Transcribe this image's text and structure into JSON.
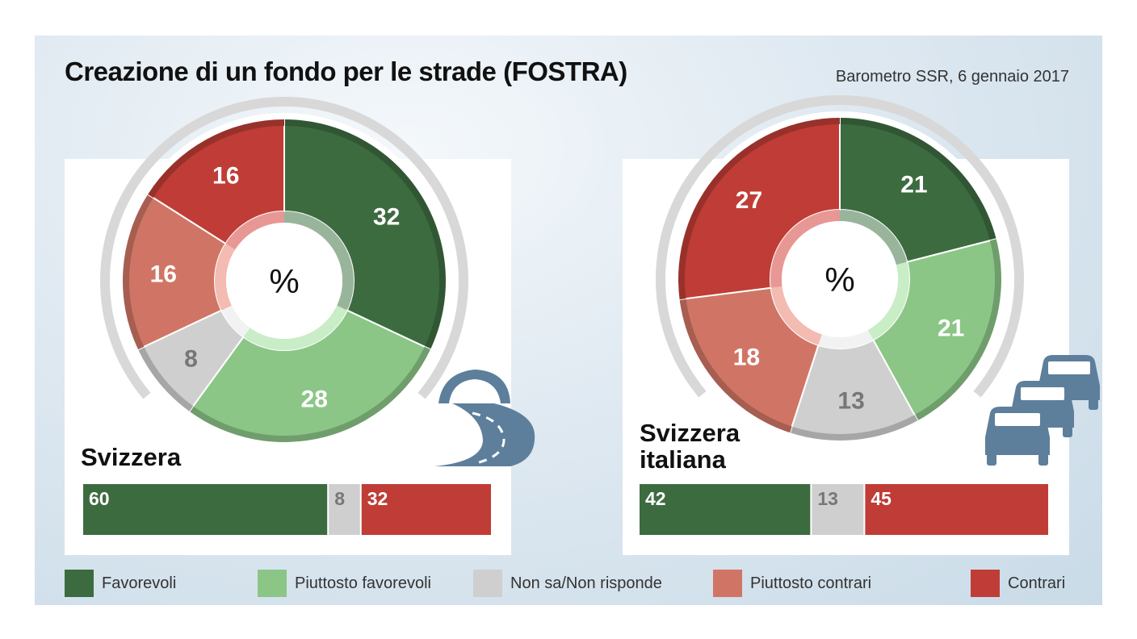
{
  "title": "Creazione di un fondo per le strade (FOSTRA)",
  "source": "Barometro SSR, 6 gennaio 2017",
  "colors": {
    "favorevoli": "#3d6b40",
    "piuttosto_favorevoli": "#8bc687",
    "non_sa": "#cfcfcf",
    "piuttosto_contrari": "#d07565",
    "contrari": "#bf3d36"
  },
  "icons": {
    "left": "road-tunnel-icon",
    "right": "traffic-cars-icon"
  },
  "legend": [
    {
      "label": "Favorevoli",
      "color": "#3d6b40"
    },
    {
      "label": "Piuttosto favorevoli",
      "color": "#8bc687"
    },
    {
      "label": "Non sa/Non risponde",
      "color": "#cfcfcf"
    },
    {
      "label": "Piuttosto contrari",
      "color": "#d07565"
    },
    {
      "label": "Contrari",
      "color": "#bf3d36"
    }
  ],
  "chart_data": [
    {
      "type": "pie",
      "region": "Svizzera",
      "center_label": "%",
      "categories": [
        "Favorevoli",
        "Piuttosto favorevoli",
        "Non sa/Non risponde",
        "Piuttosto contrari",
        "Contrari"
      ],
      "values": [
        32,
        28,
        8,
        16,
        16
      ],
      "summary_bar": {
        "type": "bar",
        "categories": [
          "Favorevoli",
          "Non sa/Non risponde",
          "Contrari"
        ],
        "values": [
          60,
          8,
          32
        ]
      }
    },
    {
      "type": "pie",
      "region": "Svizzera italiana",
      "center_label": "%",
      "categories": [
        "Favorevoli",
        "Piuttosto favorevoli",
        "Non sa/Non risponde",
        "Piuttosto contrari",
        "Contrari"
      ],
      "values": [
        21,
        21,
        13,
        18,
        27
      ],
      "summary_bar": {
        "type": "bar",
        "categories": [
          "Favorevoli",
          "Non sa/Non risponde",
          "Contrari"
        ],
        "values": [
          42,
          13,
          45
        ]
      }
    }
  ]
}
